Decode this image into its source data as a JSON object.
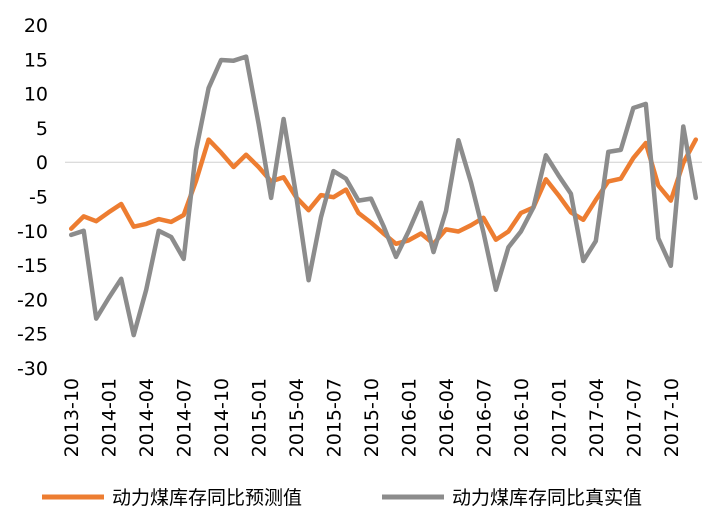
{
  "chart_data": {
    "type": "line",
    "title": "",
    "xlabel": "",
    "ylabel": "",
    "ylim": [
      -30,
      20
    ],
    "yticks": [
      20,
      15,
      10,
      5,
      0,
      -5,
      -10,
      -15,
      -20,
      -25,
      -30
    ],
    "grid": false,
    "legend_position": "bottom",
    "x_tick_labels": [
      "2013-10",
      "2014-01",
      "2014-04",
      "2014-07",
      "2014-10",
      "2015-01",
      "2015-04",
      "2015-07",
      "2015-10",
      "2016-01",
      "2016-04",
      "2016-07",
      "2016-10",
      "2017-01",
      "2017-04",
      "2017-07",
      "2017-10"
    ],
    "x": [
      "2013-10",
      "2013-11",
      "2013-12",
      "2014-01",
      "2014-02",
      "2014-03",
      "2014-04",
      "2014-05",
      "2014-06",
      "2014-07",
      "2014-08",
      "2014-09",
      "2014-10",
      "2014-11",
      "2014-12",
      "2015-01",
      "2015-02",
      "2015-03",
      "2015-04",
      "2015-05",
      "2015-06",
      "2015-07",
      "2015-08",
      "2015-09",
      "2015-10",
      "2015-11",
      "2015-12",
      "2016-01",
      "2016-02",
      "2016-03",
      "2016-04",
      "2016-05",
      "2016-06",
      "2016-07",
      "2016-08",
      "2016-09",
      "2016-10",
      "2016-11",
      "2016-12",
      "2017-01",
      "2017-02",
      "2017-03",
      "2017-04",
      "2017-05",
      "2017-06",
      "2017-07",
      "2017-08",
      "2017-09",
      "2017-10",
      "2017-11",
      "2017-12"
    ],
    "series": [
      {
        "name": "动力煤库存同比预测值",
        "color": "#ED7D31",
        "values": [
          -9.7,
          -7.9,
          -8.6,
          -7.3,
          -6.1,
          -9.4,
          -9.0,
          -8.3,
          -8.7,
          -7.7,
          -2.7,
          3.3,
          1.4,
          -0.7,
          1.1,
          -0.7,
          -2.8,
          -2.2,
          -5.1,
          -7.0,
          -4.8,
          -5.1,
          -4.0,
          -7.4,
          -8.8,
          -10.4,
          -11.9,
          -11.4,
          -10.4,
          -11.9,
          -9.8,
          -10.1,
          -9.2,
          -8.1,
          -11.3,
          -10.1,
          -7.4,
          -6.6,
          -2.5,
          -4.8,
          -7.3,
          -8.4,
          -5.5,
          -2.8,
          -2.4,
          0.6,
          2.8,
          -3.4,
          -5.6,
          -0.1,
          3.3
        ]
      },
      {
        "name": "动力煤库存同比真实值",
        "color": "#8C8C8C",
        "values": [
          -10.6,
          -10.0,
          -22.8,
          -19.8,
          -17.0,
          -25.2,
          -18.6,
          -10.0,
          -10.9,
          -14.1,
          1.8,
          10.8,
          14.9,
          14.8,
          15.4,
          5.6,
          -5.2,
          6.3,
          -4.8,
          -17.2,
          -8.0,
          -1.3,
          -2.4,
          -5.6,
          -5.3,
          -9.3,
          -13.8,
          -10.1,
          -5.9,
          -13.1,
          -7.1,
          3.2,
          -2.9,
          -10.2,
          -18.6,
          -12.4,
          -10.1,
          -6.6,
          1.0,
          -1.9,
          -4.6,
          -14.4,
          -11.5,
          1.5,
          1.8,
          7.9,
          8.5,
          -11.1,
          -15.1,
          5.2,
          -5.2
        ]
      }
    ]
  }
}
